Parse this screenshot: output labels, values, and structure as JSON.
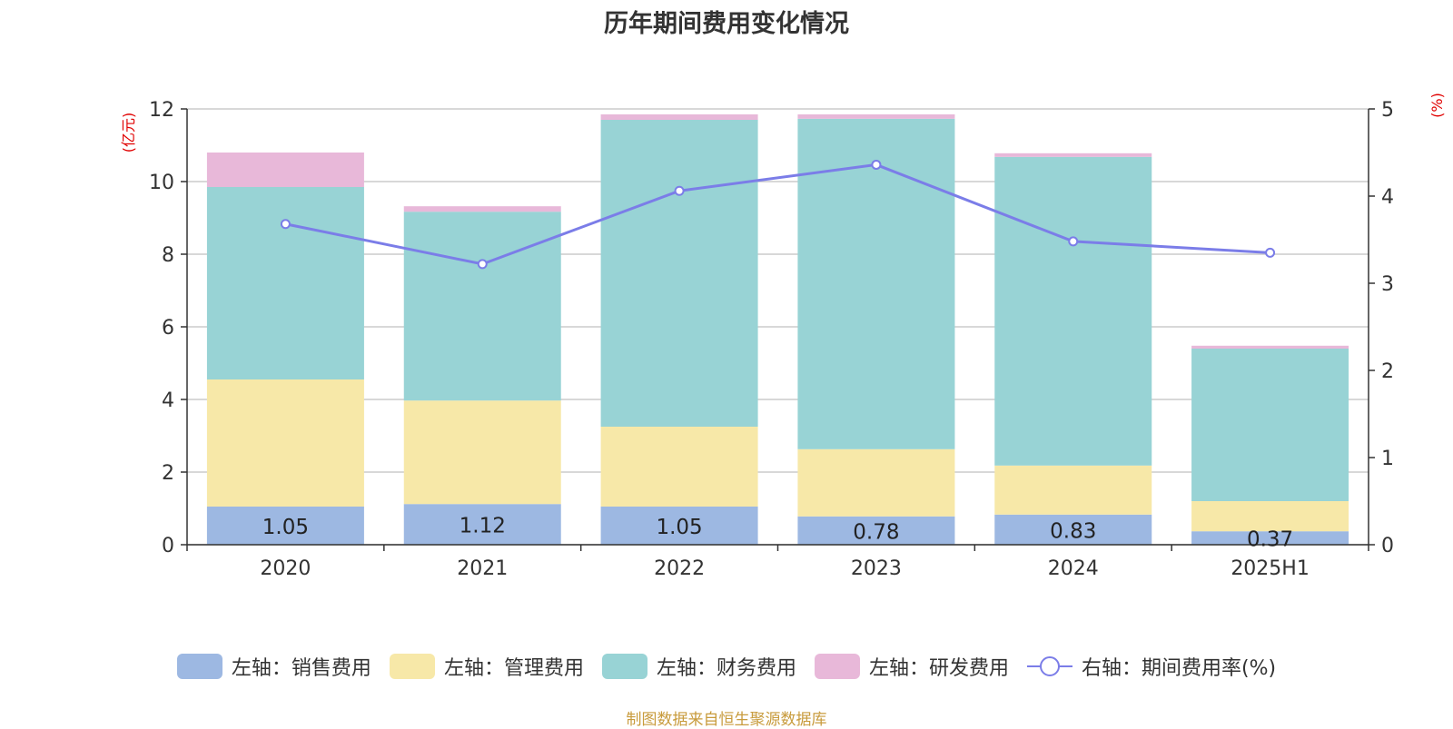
{
  "chart_data": {
    "type": "bar",
    "stacked": true,
    "title": "历年期间费用变化情况",
    "categories": [
      "2020",
      "2021",
      "2022",
      "2023",
      "2024",
      "2025H1"
    ],
    "left_axis": {
      "unit_label": "(亿元)",
      "ylim": [
        0,
        12
      ],
      "ticks": [
        0,
        2,
        4,
        6,
        8,
        10,
        12
      ]
    },
    "right_axis": {
      "unit_label": "(%)",
      "ylim": [
        0,
        5
      ],
      "ticks": [
        0,
        1,
        2,
        3,
        4,
        5
      ]
    },
    "grid": true,
    "legend_position": "bottom",
    "series": [
      {
        "name": "左轴：销售费用",
        "type": "bar",
        "axis": "left",
        "color": "#9db8e2",
        "values": [
          1.05,
          1.12,
          1.05,
          0.78,
          0.83,
          0.37
        ],
        "show_labels": true
      },
      {
        "name": "左轴：管理费用",
        "type": "bar",
        "axis": "left",
        "color": "#f7e8a8",
        "values": [
          3.5,
          2.85,
          2.2,
          1.85,
          1.35,
          0.83
        ]
      },
      {
        "name": "左轴：财务费用",
        "type": "bar",
        "axis": "left",
        "color": "#98d3d5",
        "values": [
          5.3,
          5.2,
          8.45,
          9.1,
          8.5,
          4.2
        ]
      },
      {
        "name": "左轴：研发费用",
        "type": "bar",
        "axis": "left",
        "color": "#e8b8d9",
        "values": [
          0.95,
          0.15,
          0.15,
          0.12,
          0.1,
          0.08
        ]
      },
      {
        "name": "右轴：期间费用率(%)",
        "type": "line",
        "axis": "right",
        "color": "#7b7de8",
        "values": [
          3.68,
          3.22,
          4.06,
          4.36,
          3.48,
          3.35
        ]
      }
    ],
    "source_note": "制图数据来自恒生聚源数据库"
  }
}
